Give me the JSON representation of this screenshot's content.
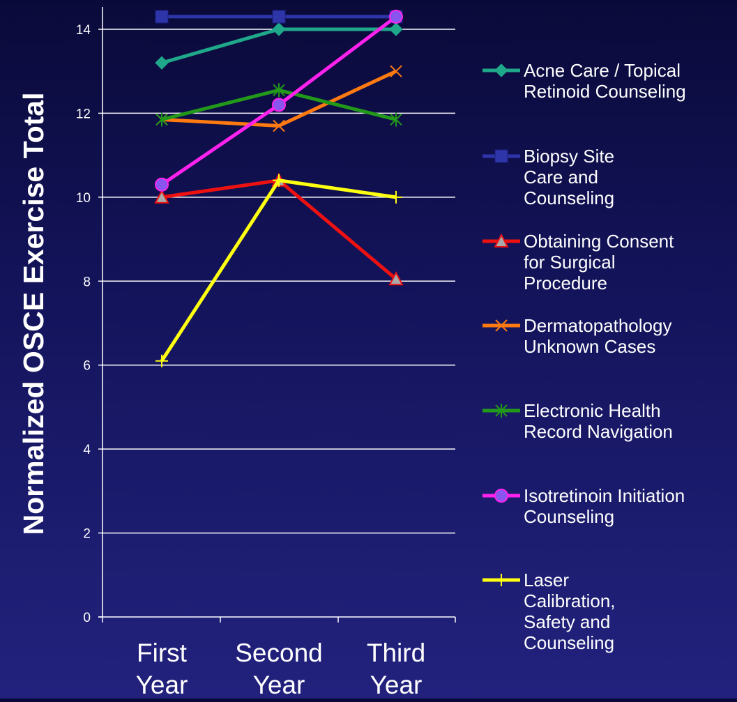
{
  "colors": {
    "background_top": "#0a0a3a",
    "background_bottom": "#22227e",
    "axis": "#ffffff",
    "grid": "#ffffff",
    "text": "#ffffff"
  },
  "chart_data": {
    "type": "line",
    "title": "",
    "xlabel": "",
    "ylabel": "Normalized OSCE Exercise Total",
    "categories": [
      "First Year",
      "Second Year",
      "Third Year"
    ],
    "ylim": [
      0,
      14.5
    ],
    "yticks": [
      0,
      2,
      4,
      6,
      8,
      10,
      12,
      14
    ],
    "grid": true,
    "legend_position": "right",
    "series": [
      {
        "name": "Acne Care / Topical Retinoid Counseling",
        "values": [
          13.2,
          14.0,
          14.0
        ],
        "color": "#1fa88a",
        "marker": "diamond"
      },
      {
        "name": "Biopsy Site Care and Counseling",
        "values": [
          14.3,
          14.3,
          14.3
        ],
        "color": "#2e35a8",
        "marker": "square"
      },
      {
        "name": "Obtaining Consent for Surgical Procedure",
        "values": [
          10.0,
          10.4,
          8.05
        ],
        "color": "#ee1111",
        "marker": "triangle"
      },
      {
        "name": "Dermatopathology Unknown Cases",
        "values": [
          11.85,
          11.7,
          13.0
        ],
        "color": "#ff7a10",
        "marker": "x"
      },
      {
        "name": "Electronic Health Record Navigation",
        "values": [
          11.85,
          12.55,
          11.85
        ],
        "color": "#22991a",
        "marker": "star"
      },
      {
        "name": "Isotretinoin Initiation Counseling",
        "values": [
          10.3,
          12.2,
          14.3
        ],
        "color": "#ff22ee",
        "marker": "circle"
      },
      {
        "name": "Laser Calibration, Safety and Counseling",
        "values": [
          6.1,
          10.4,
          10.0
        ],
        "color": "#ffff11",
        "marker": "plus"
      }
    ]
  }
}
